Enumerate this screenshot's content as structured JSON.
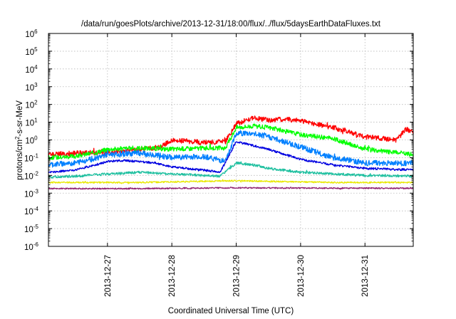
{
  "chart_data": {
    "type": "line",
    "title": "/data/run/goesPlots/archive/2013-12-31/18:00/flux/../flux/5daysEarthDataFluxes.txt",
    "xlabel": "Coordinated Universal Time (UTC)",
    "ylabel": {
      "base": "protons/cm",
      "sup": "2",
      "rest": "-s-sr-MeV"
    },
    "y_scale": "log",
    "ylim": [
      1e-06,
      1000000.0
    ],
    "y_ticks": [
      {
        "value": 1e-06,
        "base": "10",
        "exp": "-6"
      },
      {
        "value": 1e-05,
        "base": "10",
        "exp": "-5"
      },
      {
        "value": 0.0001,
        "base": "10",
        "exp": "-4"
      },
      {
        "value": 0.001,
        "base": "10",
        "exp": "-3"
      },
      {
        "value": 0.01,
        "base": "10",
        "exp": "-2"
      },
      {
        "value": 0.1,
        "base": "10",
        "exp": "-1"
      },
      {
        "value": 1,
        "base": "10",
        "exp": "0"
      },
      {
        "value": 10,
        "base": "10",
        "exp": "1"
      },
      {
        "value": 100,
        "base": "10",
        "exp": "2"
      },
      {
        "value": 1000,
        "base": "10",
        "exp": "3"
      },
      {
        "value": 10000,
        "base": "10",
        "exp": "4"
      },
      {
        "value": 100000,
        "base": "10",
        "exp": "5"
      },
      {
        "value": 1000000,
        "base": "10",
        "exp": "6"
      }
    ],
    "xlim": [
      "2013-12-26 02:00",
      "2013-12-31 18:00"
    ],
    "x_ticks": [
      {
        "value": "2013-12-27 00:00",
        "label": "2013-12-27"
      },
      {
        "value": "2013-12-28 00:00",
        "label": "2013-12-28"
      },
      {
        "value": "2013-12-29 00:00",
        "label": "2013-12-29"
      },
      {
        "value": "2013-12-30 00:00",
        "label": "2013-12-30"
      },
      {
        "value": "2013-12-31 00:00",
        "label": "2013-12-31"
      }
    ],
    "grid": true,
    "series": [
      {
        "color": "#ff0000",
        "noise": 0.14,
        "points": [
          [
            "2013-12-26 02:00",
            0.15
          ],
          [
            "2013-12-26 12:00",
            0.18
          ],
          [
            "2013-12-27 00:00",
            0.2
          ],
          [
            "2013-12-27 12:00",
            0.28
          ],
          [
            "2013-12-27 20:00",
            0.4
          ],
          [
            "2013-12-28 00:00",
            1.0
          ],
          [
            "2013-12-28 12:00",
            0.7
          ],
          [
            "2013-12-28 20:00",
            0.8
          ],
          [
            "2013-12-29 00:00",
            8
          ],
          [
            "2013-12-29 06:00",
            18
          ],
          [
            "2013-12-29 12:00",
            13
          ],
          [
            "2013-12-29 18:00",
            15
          ],
          [
            "2013-12-30 00:00",
            12
          ],
          [
            "2013-12-30 12:00",
            5
          ],
          [
            "2013-12-30 18:00",
            3
          ],
          [
            "2013-12-31 00:00",
            1.5
          ],
          [
            "2013-12-31 12:00",
            1.0
          ],
          [
            "2013-12-31 15:00",
            4
          ],
          [
            "2013-12-31 18:00",
            3
          ]
        ]
      },
      {
        "color": "#00ff00",
        "noise": 0.13,
        "points": [
          [
            "2013-12-26 02:00",
            0.1
          ],
          [
            "2013-12-26 12:00",
            0.12
          ],
          [
            "2013-12-26 20:00",
            0.2
          ],
          [
            "2013-12-27 00:00",
            0.3
          ],
          [
            "2013-12-27 12:00",
            0.35
          ],
          [
            "2013-12-28 00:00",
            0.3
          ],
          [
            "2013-12-28 12:00",
            0.35
          ],
          [
            "2013-12-28 20:00",
            0.35
          ],
          [
            "2013-12-29 00:00",
            5
          ],
          [
            "2013-12-29 06:00",
            6
          ],
          [
            "2013-12-29 12:00",
            5
          ],
          [
            "2013-12-30 00:00",
            2
          ],
          [
            "2013-12-30 12:00",
            1.2
          ],
          [
            "2013-12-31 00:00",
            0.3
          ],
          [
            "2013-12-31 18:00",
            0.15
          ]
        ]
      },
      {
        "color": "#0080ff",
        "noise": 0.16,
        "points": [
          [
            "2013-12-26 02:00",
            0.04
          ],
          [
            "2013-12-26 12:00",
            0.05
          ],
          [
            "2013-12-26 20:00",
            0.1
          ],
          [
            "2013-12-27 00:00",
            0.15
          ],
          [
            "2013-12-27 12:00",
            0.18
          ],
          [
            "2013-12-28 00:00",
            0.1
          ],
          [
            "2013-12-28 12:00",
            0.12
          ],
          [
            "2013-12-28 20:00",
            0.06
          ],
          [
            "2013-12-29 00:00",
            2.5
          ],
          [
            "2013-12-29 06:00",
            2.2
          ],
          [
            "2013-12-29 12:00",
            1.5
          ],
          [
            "2013-12-30 00:00",
            0.4
          ],
          [
            "2013-12-30 12:00",
            0.1
          ],
          [
            "2013-12-31 00:00",
            0.05
          ],
          [
            "2013-12-31 18:00",
            0.05
          ]
        ]
      },
      {
        "color": "#0000e0",
        "noise": 0.06,
        "points": [
          [
            "2013-12-26 02:00",
            0.015
          ],
          [
            "2013-12-26 12:00",
            0.02
          ],
          [
            "2013-12-27 00:00",
            0.06
          ],
          [
            "2013-12-27 06:00",
            0.07
          ],
          [
            "2013-12-27 18:00",
            0.05
          ],
          [
            "2013-12-28 00:00",
            0.03
          ],
          [
            "2013-12-28 12:00",
            0.02
          ],
          [
            "2013-12-28 18:00",
            0.015
          ],
          [
            "2013-12-29 00:00",
            0.8
          ],
          [
            "2013-12-29 06:00",
            0.5
          ],
          [
            "2013-12-29 12:00",
            0.3
          ],
          [
            "2013-12-30 00:00",
            0.08
          ],
          [
            "2013-12-30 12:00",
            0.04
          ],
          [
            "2013-12-31 00:00",
            0.025
          ],
          [
            "2013-12-31 18:00",
            0.02
          ]
        ]
      },
      {
        "color": "#20c0a0",
        "noise": 0.07,
        "points": [
          [
            "2013-12-26 02:00",
            0.008
          ],
          [
            "2013-12-26 12:00",
            0.009
          ],
          [
            "2013-12-27 00:00",
            0.012
          ],
          [
            "2013-12-27 12:00",
            0.015
          ],
          [
            "2013-12-28 00:00",
            0.012
          ],
          [
            "2013-12-28 18:00",
            0.009
          ],
          [
            "2013-12-29 00:00",
            0.05
          ],
          [
            "2013-12-29 06:00",
            0.04
          ],
          [
            "2013-12-29 12:00",
            0.025
          ],
          [
            "2013-12-30 00:00",
            0.015
          ],
          [
            "2013-12-31 00:00",
            0.01
          ],
          [
            "2013-12-31 18:00",
            0.009
          ]
        ]
      },
      {
        "color": "#e8e800",
        "noise": 0.04,
        "points": [
          [
            "2013-12-26 02:00",
            0.004
          ],
          [
            "2013-12-27 12:00",
            0.004
          ],
          [
            "2013-12-29 00:00",
            0.005
          ],
          [
            "2013-12-30 12:00",
            0.004
          ],
          [
            "2013-12-31 18:00",
            0.004
          ]
        ]
      },
      {
        "color": "#902070",
        "noise": 0.035,
        "points": [
          [
            "2013-12-26 02:00",
            0.0018
          ],
          [
            "2013-12-27 12:00",
            0.0018
          ],
          [
            "2013-12-29 00:00",
            0.002
          ],
          [
            "2013-12-30 12:00",
            0.0019
          ],
          [
            "2013-12-31 18:00",
            0.0019
          ]
        ]
      }
    ]
  }
}
